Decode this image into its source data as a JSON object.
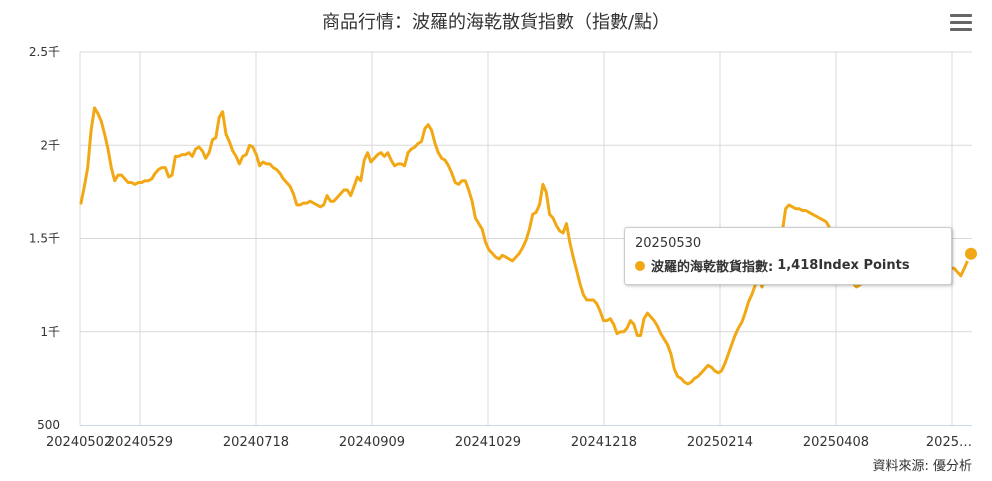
{
  "title": "商品行情：波羅的海乾散貨指數（指數/點）",
  "credits": "資料來源: 優分析",
  "colors": {
    "series": "#f2a814",
    "grid": "#d8d8d8",
    "axis": "#ccd6eb"
  },
  "tooltip": {
    "date": "20250530",
    "series_name": "波羅的海乾散貨指數:",
    "value": "1,418",
    "unit": "Index Points"
  },
  "menu_icon": "hamburger-menu-icon",
  "chart_data": {
    "type": "line",
    "title": "商品行情：波羅的海乾散貨指數（指數/點）",
    "xlabel": "",
    "ylabel": "",
    "ylim": [
      500,
      2500
    ],
    "yticks": [
      {
        "value": 500,
        "label": "500"
      },
      {
        "value": 1000,
        "label": "1千"
      },
      {
        "value": 1500,
        "label": "1.5千"
      },
      {
        "value": 2000,
        "label": "2千"
      },
      {
        "value": 2500,
        "label": "2.5千"
      }
    ],
    "xticks": [
      "20240502",
      "20240529",
      "20240718",
      "20240909",
      "20241029",
      "20241218",
      "20250214",
      "20250408",
      "2025…"
    ],
    "grid": true,
    "legend": "none",
    "series": [
      {
        "name": "波羅的海乾散貨指數",
        "values": [
          1690,
          1780,
          1880,
          2080,
          2200,
          2170,
          2130,
          2060,
          1980,
          1880,
          1810,
          1840,
          1840,
          1820,
          1800,
          1800,
          1790,
          1800,
          1800,
          1810,
          1810,
          1820,
          1850,
          1870,
          1880,
          1880,
          1830,
          1840,
          1940,
          1940,
          1950,
          1950,
          1960,
          1940,
          1980,
          1990,
          1970,
          1930,
          1960,
          2030,
          2040,
          2150,
          2180,
          2060,
          2020,
          1970,
          1940,
          1900,
          1940,
          1950,
          2000,
          1990,
          1950,
          1890,
          1910,
          1900,
          1900,
          1880,
          1870,
          1850,
          1820,
          1800,
          1780,
          1740,
          1680,
          1680,
          1690,
          1690,
          1700,
          1690,
          1680,
          1670,
          1680,
          1730,
          1700,
          1700,
          1720,
          1740,
          1760,
          1760,
          1730,
          1780,
          1830,
          1810,
          1920,
          1960,
          1910,
          1930,
          1950,
          1960,
          1940,
          1960,
          1920,
          1890,
          1900,
          1900,
          1890,
          1960,
          1980,
          1990,
          2010,
          2020,
          2090,
          2110,
          2080,
          2010,
          1960,
          1930,
          1920,
          1890,
          1850,
          1800,
          1790,
          1810,
          1810,
          1760,
          1700,
          1610,
          1580,
          1550,
          1480,
          1440,
          1420,
          1400,
          1390,
          1410,
          1400,
          1390,
          1380,
          1400,
          1420,
          1450,
          1490,
          1550,
          1630,
          1640,
          1680,
          1790,
          1750,
          1630,
          1610,
          1570,
          1540,
          1530,
          1580,
          1480,
          1400,
          1330,
          1260,
          1200,
          1170,
          1170,
          1170,
          1150,
          1110,
          1060,
          1060,
          1070,
          1040,
          990,
          1000,
          1000,
          1020,
          1060,
          1040,
          980,
          980,
          1070,
          1100,
          1080,
          1060,
          1030,
          990,
          960,
          930,
          880,
          800,
          760,
          750,
          730,
          720,
          730,
          750,
          760,
          780,
          800,
          820,
          810,
          790,
          780,
          790,
          830,
          880,
          930,
          980,
          1020,
          1050,
          1100,
          1160,
          1200,
          1250,
          1290,
          1240,
          1300,
          1310,
          1320,
          1340,
          1420,
          1530,
          1660,
          1680,
          1670,
          1660,
          1660,
          1650,
          1650,
          1640,
          1630,
          1620,
          1610,
          1600,
          1590,
          1560,
          1540,
          1500,
          1440,
          1370,
          1300,
          1260,
          1260,
          1240,
          1250,
          1270,
          1270,
          1290,
          1300,
          1300,
          1310,
          1330,
          1340,
          1350,
          1340,
          1320,
          1310,
          1310,
          1310,
          1300,
          1300,
          1320,
          1340,
          1350,
          1360,
          1370,
          1380,
          1390,
          1300,
          1290,
          1330,
          1340,
          1340,
          1320,
          1300,
          1340,
          1380,
          1418
        ]
      }
    ]
  }
}
